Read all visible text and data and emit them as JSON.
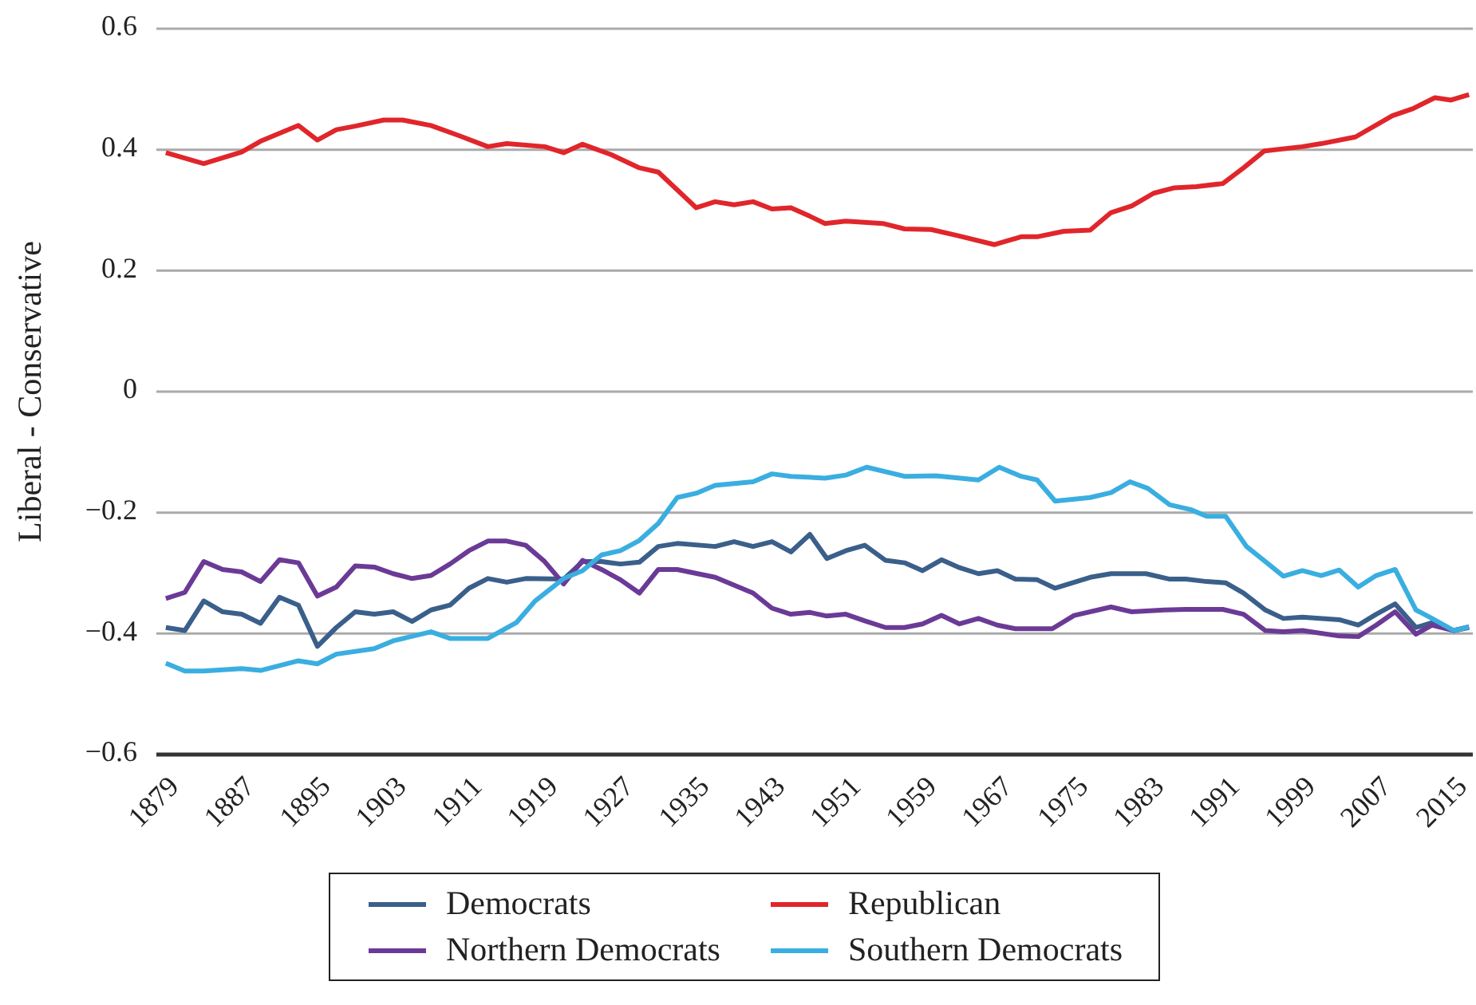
{
  "chart_data": {
    "type": "line",
    "ylabel": "Liberal - Conservative",
    "xlim": [
      1879,
      2018
    ],
    "xticks": [
      1879,
      1887,
      1895,
      1903,
      1911,
      1919,
      1927,
      1935,
      1943,
      1951,
      1959,
      1967,
      1975,
      1983,
      1991,
      1999,
      2007,
      2015
    ],
    "ylim": [
      -0.6,
      0.6
    ],
    "yticks": [
      {
        "value": -0.6,
        "label": "−0.6"
      },
      {
        "value": -0.4,
        "label": "−0.4"
      },
      {
        "value": -0.2,
        "label": "−0.2"
      },
      0,
      0.2,
      0.4,
      0.6
    ],
    "grid": "y",
    "legend": "bottom",
    "marker": "none",
    "line_style": "solid",
    "series": [
      {
        "name": "Democrats",
        "color": "#3a5f8a",
        "x": [
          1880,
          1882,
          1884,
          1886,
          1888,
          1890,
          1892,
          1894,
          1896,
          1898,
          1900,
          1902,
          1904,
          1906,
          1908,
          1910,
          1912,
          1914,
          1916,
          1918,
          1922,
          1924,
          1926,
          1928,
          1930,
          1932,
          1934,
          1938,
          1940,
          1942,
          1944,
          1946,
          1948,
          1949.8,
          1951.8,
          1953.8,
          1956,
          1958,
          1959.9,
          1961.9,
          1963.8,
          1965.8,
          1967.8,
          1969.7,
          1972,
          1973.9,
          1977.6,
          1979.8,
          1983.5,
          1986,
          1987.7,
          1989.9,
          1991.9,
          1993.8,
          1996.1,
          1998,
          2000,
          2003.9,
          2005.9,
          2007.8,
          2009.8,
          2012,
          2013.7,
          2016,
          2017.6
        ],
        "values": [
          -0.39,
          -0.395,
          -0.346,
          -0.364,
          -0.368,
          -0.383,
          -0.34,
          -0.353,
          -0.421,
          -0.39,
          -0.364,
          -0.368,
          -0.364,
          -0.38,
          -0.361,
          -0.353,
          -0.325,
          -0.309,
          -0.315,
          -0.309,
          -0.31,
          -0.281,
          -0.281,
          -0.285,
          -0.282,
          -0.256,
          -0.251,
          -0.256,
          -0.248,
          -0.256,
          -0.248,
          -0.265,
          -0.236,
          -0.276,
          -0.263,
          -0.254,
          -0.279,
          -0.283,
          -0.296,
          -0.278,
          -0.291,
          -0.301,
          -0.296,
          -0.31,
          -0.311,
          -0.325,
          -0.307,
          -0.301,
          -0.301,
          -0.31,
          -0.31,
          -0.314,
          -0.316,
          -0.333,
          -0.361,
          -0.375,
          -0.373,
          -0.377,
          -0.386,
          -0.368,
          -0.351,
          -0.39,
          -0.382,
          -0.395,
          -0.39
        ]
      },
      {
        "name": "Republican",
        "color": "#e0262b",
        "x": [
          1880,
          1884,
          1888,
          1890,
          1894,
          1896,
          1898,
          1900,
          1903,
          1905,
          1908,
          1911,
          1914,
          1916,
          1920,
          1922,
          1924,
          1927,
          1930,
          1932,
          1936,
          1938,
          1940,
          1942,
          1944,
          1946,
          1948,
          1949.6,
          1951.8,
          1955.7,
          1958,
          1960.8,
          1963.6,
          1967.5,
          1970.3,
          1972,
          1974.8,
          1977.6,
          1979.8,
          1982,
          1984.3,
          1986.5,
          1988.8,
          1991.6,
          1993.8,
          1996,
          2000,
          2002,
          2005.6,
          2009.5,
          2011.7,
          2014,
          2015.7,
          2017.6
        ],
        "values": [
          0.395,
          0.377,
          0.396,
          0.414,
          0.44,
          0.416,
          0.433,
          0.439,
          0.449,
          0.449,
          0.44,
          0.423,
          0.405,
          0.41,
          0.405,
          0.395,
          0.409,
          0.392,
          0.37,
          0.363,
          0.304,
          0.314,
          0.309,
          0.314,
          0.302,
          0.304,
          0.29,
          0.278,
          0.282,
          0.278,
          0.269,
          0.268,
          0.258,
          0.243,
          0.256,
          0.256,
          0.265,
          0.267,
          0.296,
          0.307,
          0.328,
          0.337,
          0.339,
          0.344,
          0.37,
          0.398,
          0.405,
          0.41,
          0.421,
          0.456,
          0.468,
          0.486,
          0.482,
          0.491
        ]
      },
      {
        "name": "Northern Democrats",
        "color": "#6b3a96",
        "x": [
          1880,
          1882,
          1884,
          1886,
          1888,
          1890,
          1892,
          1894,
          1896,
          1898,
          1900,
          1902,
          1904,
          1906,
          1908,
          1910,
          1912,
          1914,
          1916,
          1918,
          1920,
          1922,
          1924,
          1926,
          1928,
          1930,
          1932,
          1934,
          1938,
          1942,
          1944,
          1946,
          1948,
          1949.8,
          1951.8,
          1953.8,
          1956,
          1958,
          1959.9,
          1961.9,
          1963.8,
          1965.8,
          1967.8,
          1969.7,
          1973.6,
          1975.9,
          1979.8,
          1982,
          1985.4,
          1987.7,
          1991.6,
          1993.8,
          1996.1,
          1998,
          2000,
          2003.9,
          2005.9,
          2007.8,
          2009.8,
          2012,
          2013.7,
          2016,
          2017.6
        ],
        "values": [
          -0.342,
          -0.332,
          -0.281,
          -0.294,
          -0.298,
          -0.314,
          -0.278,
          -0.283,
          -0.338,
          -0.323,
          -0.288,
          -0.29,
          -0.301,
          -0.309,
          -0.304,
          -0.285,
          -0.263,
          -0.247,
          -0.247,
          -0.254,
          -0.281,
          -0.318,
          -0.279,
          -0.294,
          -0.311,
          -0.333,
          -0.294,
          -0.294,
          -0.307,
          -0.333,
          -0.358,
          -0.368,
          -0.365,
          -0.371,
          -0.368,
          -0.379,
          -0.39,
          -0.39,
          -0.384,
          -0.37,
          -0.384,
          -0.375,
          -0.386,
          -0.392,
          -0.392,
          -0.37,
          -0.356,
          -0.364,
          -0.361,
          -0.36,
          -0.36,
          -0.368,
          -0.395,
          -0.397,
          -0.395,
          -0.404,
          -0.405,
          -0.386,
          -0.364,
          -0.401,
          -0.386,
          -0.395,
          -0.389
        ]
      },
      {
        "name": "Southern Democrats",
        "color": "#3aaee0",
        "x": [
          1880,
          1882,
          1884,
          1888,
          1890,
          1894,
          1896,
          1898,
          1902,
          1904,
          1908,
          1910,
          1914,
          1917,
          1919,
          1922,
          1924,
          1926,
          1928,
          1930,
          1932,
          1934,
          1936,
          1938,
          1942,
          1944,
          1946,
          1949.6,
          1951.8,
          1954,
          1958,
          1961.3,
          1965.8,
          1968,
          1970.3,
          1972,
          1973.9,
          1977.6,
          1979.8,
          1981.8,
          1983.7,
          1986,
          1988.2,
          1989.9,
          1991.9,
          1994.1,
          1996.1,
          1998,
          2000,
          2002,
          2003.9,
          2005.9,
          2007.8,
          2009.8,
          2012,
          2013.7,
          2016,
          2017.6
        ],
        "values": [
          -0.449,
          -0.462,
          -0.462,
          -0.458,
          -0.461,
          -0.445,
          -0.45,
          -0.434,
          -0.425,
          -0.412,
          -0.397,
          -0.408,
          -0.408,
          -0.382,
          -0.346,
          -0.309,
          -0.296,
          -0.27,
          -0.263,
          -0.246,
          -0.218,
          -0.175,
          -0.168,
          -0.155,
          -0.149,
          -0.136,
          -0.14,
          -0.143,
          -0.138,
          -0.125,
          -0.14,
          -0.139,
          -0.146,
          -0.125,
          -0.14,
          -0.146,
          -0.181,
          -0.175,
          -0.167,
          -0.149,
          -0.16,
          -0.187,
          -0.195,
          -0.206,
          -0.206,
          -0.256,
          -0.281,
          -0.305,
          -0.296,
          -0.304,
          -0.295,
          -0.323,
          -0.304,
          -0.294,
          -0.361,
          -0.375,
          -0.395,
          -0.389
        ]
      }
    ]
  }
}
